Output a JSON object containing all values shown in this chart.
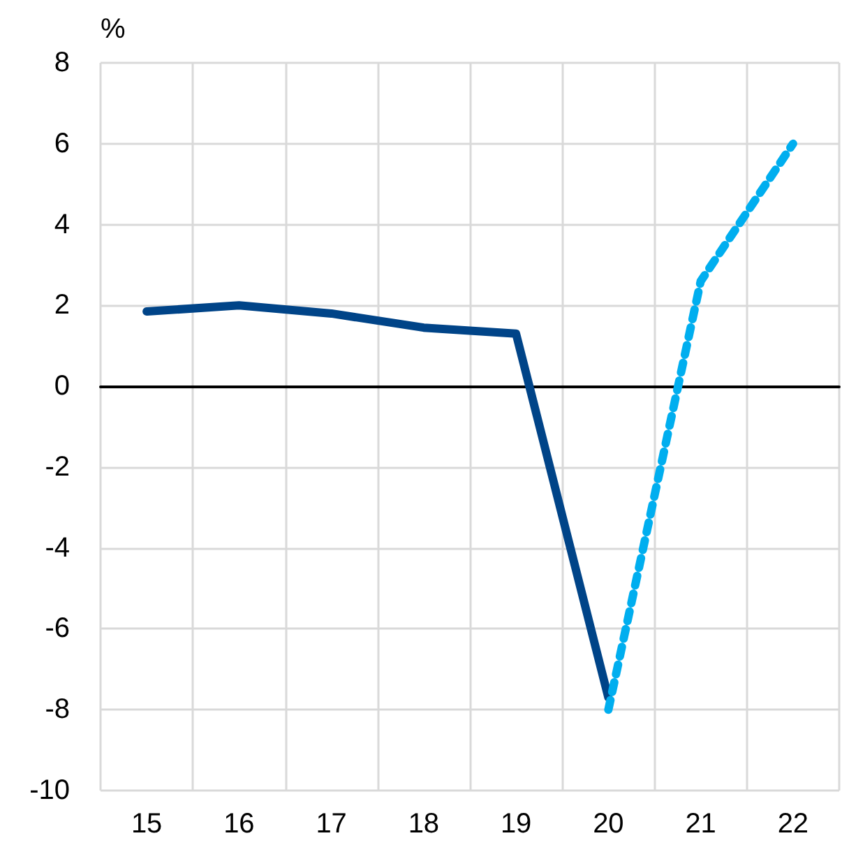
{
  "chart_data": {
    "type": "line",
    "ylabel": "%",
    "categories": [
      "15",
      "16",
      "17",
      "18",
      "19",
      "20",
      "21",
      "22"
    ],
    "series": [
      {
        "color": "#004488",
        "line_style": "solid",
        "values": [
          1.85,
          2.0,
          1.8,
          1.45,
          1.3,
          -7.7,
          null,
          null
        ]
      },
      {
        "color": "#00aeef",
        "line_style": "dashed",
        "values": [
          null,
          null,
          null,
          null,
          null,
          -8.0,
          2.6,
          6.0
        ]
      }
    ],
    "ylim": [
      -10,
      8
    ],
    "yticks": [
      -10,
      -8,
      -6,
      -4,
      -2,
      0,
      2,
      4,
      6,
      8
    ],
    "grid": true,
    "marker": "none"
  }
}
